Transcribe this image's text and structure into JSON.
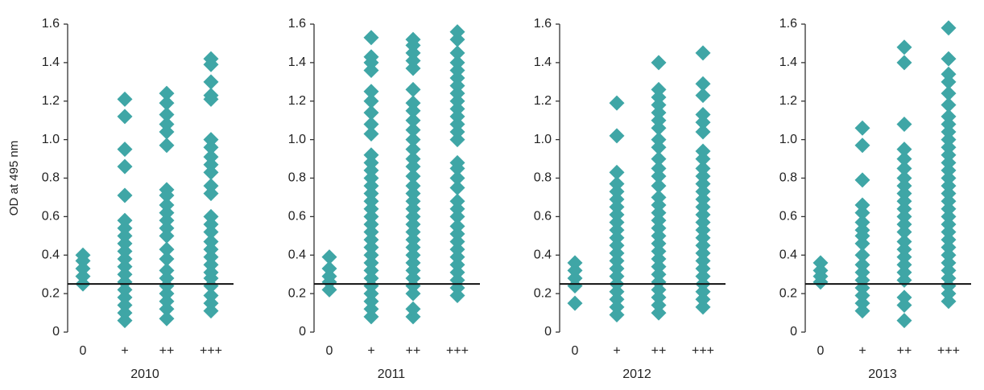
{
  "chart_data": [
    {
      "type": "strip",
      "ylabel": "OD at 495 nm",
      "xlabel": "2010",
      "categories": [
        "0",
        "+",
        "++",
        "+++"
      ],
      "color": "#3fa6a6",
      "ylim": [
        0,
        1.6
      ],
      "yticks": [
        0,
        0.2,
        0.4,
        0.6,
        0.8,
        {
          "value": 1,
          "label": "1.0"
        },
        1.2,
        1.4,
        1.6
      ],
      "threshold": 0.25,
      "groups": [
        [
          0.25,
          0.29,
          0.33,
          0.37,
          0.4
        ],
        [
          0.06,
          0.1,
          0.14,
          0.18,
          0.22,
          0.26,
          0.3,
          0.34,
          0.38,
          0.42,
          0.46,
          0.5,
          0.54,
          0.58,
          0.71,
          0.86,
          0.95,
          1.12,
          1.21
        ],
        [
          0.07,
          0.12,
          0.16,
          0.2,
          0.24,
          0.28,
          0.32,
          0.38,
          0.43,
          0.5,
          0.54,
          0.58,
          0.62,
          0.66,
          0.71,
          0.74,
          0.97,
          1.04,
          1.08,
          1.13,
          1.19,
          1.24
        ],
        [
          0.11,
          0.15,
          0.19,
          0.24,
          0.28,
          0.31,
          0.35,
          0.39,
          0.43,
          0.47,
          0.52,
          0.56,
          0.6,
          0.72,
          0.76,
          0.83,
          0.87,
          0.91,
          0.96,
          1.0,
          1.21,
          1.23,
          1.3,
          1.39,
          1.42
        ]
      ]
    },
    {
      "type": "strip",
      "xlabel": "2011",
      "categories": [
        "0",
        "+",
        "++",
        "+++"
      ],
      "color": "#3fa6a6",
      "ylim": [
        0,
        1.6
      ],
      "yticks": [
        0,
        0.2,
        0.4,
        0.6,
        0.8,
        {
          "value": 1,
          "label": "1.0"
        },
        1.2,
        1.4,
        1.6
      ],
      "threshold": 0.25,
      "groups": [
        [
          0.22,
          0.26,
          0.29,
          0.33,
          0.39
        ],
        [
          0.08,
          0.12,
          0.16,
          0.2,
          0.24,
          0.28,
          0.32,
          0.36,
          0.4,
          0.44,
          0.48,
          0.52,
          0.56,
          0.6,
          0.64,
          0.68,
          0.72,
          0.76,
          0.8,
          0.84,
          0.88,
          0.92,
          1.03,
          1.08,
          1.14,
          1.2,
          1.25,
          1.36,
          1.4,
          1.43,
          1.53
        ],
        [
          0.08,
          0.12,
          0.2,
          0.24,
          0.28,
          0.32,
          0.36,
          0.4,
          0.44,
          0.48,
          0.52,
          0.56,
          0.6,
          0.64,
          0.68,
          0.72,
          0.76,
          0.81,
          0.86,
          0.9,
          0.95,
          1.0,
          1.05,
          1.1,
          1.15,
          1.19,
          1.26,
          1.37,
          1.41,
          1.45,
          1.49,
          1.52
        ],
        [
          0.19,
          0.23,
          0.27,
          0.31,
          0.35,
          0.39,
          0.43,
          0.47,
          0.51,
          0.55,
          0.6,
          0.64,
          0.68,
          0.75,
          0.8,
          0.85,
          0.88,
          1.0,
          1.04,
          1.08,
          1.12,
          1.16,
          1.2,
          1.24,
          1.28,
          1.32,
          1.36,
          1.4,
          1.45,
          1.52,
          1.56
        ]
      ]
    },
    {
      "type": "strip",
      "xlabel": "2012",
      "categories": [
        "0",
        "+",
        "++",
        "+++"
      ],
      "color": "#3fa6a6",
      "ylim": [
        0,
        1.6
      ],
      "yticks": [
        0,
        0.2,
        0.4,
        0.6,
        0.8,
        {
          "value": 1,
          "label": "1.0"
        },
        1.2,
        1.4,
        1.6
      ],
      "threshold": 0.25,
      "groups": [
        [
          0.15,
          0.24,
          0.28,
          0.32,
          0.36
        ],
        [
          0.09,
          0.13,
          0.17,
          0.21,
          0.25,
          0.29,
          0.33,
          0.37,
          0.41,
          0.45,
          0.49,
          0.53,
          0.57,
          0.61,
          0.65,
          0.69,
          0.73,
          0.77,
          0.83,
          1.02,
          1.19
        ],
        [
          0.1,
          0.14,
          0.18,
          0.22,
          0.26,
          0.3,
          0.34,
          0.38,
          0.42,
          0.46,
          0.5,
          0.54,
          0.58,
          0.62,
          0.66,
          0.7,
          0.76,
          0.81,
          0.85,
          0.9,
          0.96,
          1.0,
          1.06,
          1.1,
          1.14,
          1.18,
          1.22,
          1.26,
          1.4
        ],
        [
          0.13,
          0.17,
          0.21,
          0.25,
          0.29,
          0.33,
          0.37,
          0.41,
          0.45,
          0.49,
          0.53,
          0.57,
          0.61,
          0.65,
          0.69,
          0.73,
          0.77,
          0.81,
          0.85,
          0.9,
          0.94,
          1.04,
          1.09,
          1.13,
          1.23,
          1.29,
          1.45
        ]
      ]
    },
    {
      "type": "strip",
      "xlabel": "2013",
      "categories": [
        "0",
        "+",
        "++",
        "+++"
      ],
      "color": "#3fa6a6",
      "ylim": [
        0,
        1.6
      ],
      "yticks": [
        0,
        0.2,
        0.4,
        0.6,
        0.8,
        {
          "value": 1,
          "label": "1.0"
        },
        1.2,
        1.4,
        1.6
      ],
      "threshold": 0.25,
      "groups": [
        [
          0.26,
          0.29,
          0.32,
          0.36
        ],
        [
          0.11,
          0.15,
          0.19,
          0.23,
          0.27,
          0.31,
          0.35,
          0.4,
          0.46,
          0.5,
          0.53,
          0.57,
          0.62,
          0.66,
          0.79,
          0.97,
          1.06
        ],
        [
          0.06,
          0.14,
          0.18,
          0.27,
          0.31,
          0.35,
          0.39,
          0.43,
          0.47,
          0.52,
          0.56,
          0.6,
          0.64,
          0.68,
          0.72,
          0.76,
          0.8,
          0.85,
          0.9,
          0.95,
          1.08,
          1.4,
          1.48
        ],
        [
          0.16,
          0.2,
          0.24,
          0.28,
          0.32,
          0.36,
          0.4,
          0.44,
          0.48,
          0.52,
          0.56,
          0.6,
          0.64,
          0.68,
          0.72,
          0.76,
          0.8,
          0.84,
          0.88,
          0.92,
          0.96,
          1.0,
          1.04,
          1.08,
          1.12,
          1.18,
          1.24,
          1.3,
          1.34,
          1.42,
          1.58
        ]
      ]
    }
  ]
}
